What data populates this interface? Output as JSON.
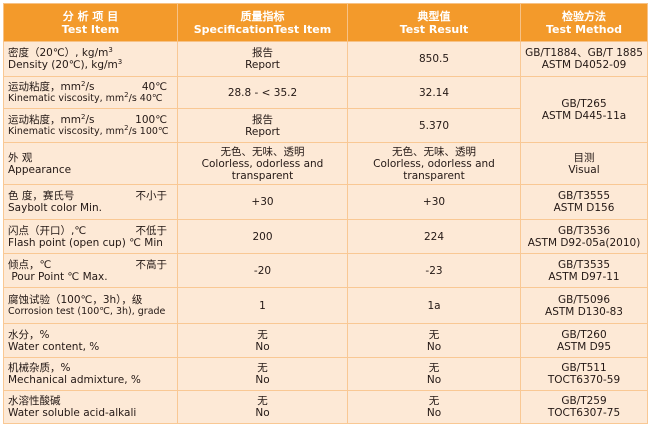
{
  "headers": [
    {
      "zh": "分 析 项 目",
      "en": "Test Item"
    },
    {
      "zh": "质量指标",
      "en": "SpecificationTest Item"
    },
    {
      "zh": "典型值",
      "en": "Test Result"
    },
    {
      "zh": "检验方法",
      "en": "Test Method"
    }
  ],
  "rows": [
    {
      "item_zh": "密度（20℃）, kg/m",
      "item_zh_sup": "3",
      "item_note": "",
      "item_en": "Density (20℃), kg/m",
      "item_en_sup": "3",
      "spec": [
        "报告",
        "Report"
      ],
      "result": [
        "850.5"
      ],
      "method": [
        "GB/T1884、GB/T 1885",
        "ASTM D4052-09"
      ]
    },
    {
      "item_zh": "运动粘度，mm",
      "item_zh_sup": "2",
      "item_zh_tail": "/s",
      "item_note": "40℃",
      "item_en": "Kinematic viscosity, mm",
      "item_en_sup": "2",
      "item_en_tail": "/s 40℃",
      "spec": [
        "28.8 - < 35.2"
      ],
      "result": [
        "32.14"
      ],
      "method": [
        "GB/T265",
        "ASTM D445-11a"
      ]
    },
    {
      "item_zh": "运动粘度，mm",
      "item_zh_sup": "2",
      "item_zh_tail": "/s",
      "item_note": "100℃",
      "item_en": "Kinematic viscosity, mm",
      "item_en_sup": "2",
      "item_en_tail": "/s 100℃",
      "spec": [
        "报告",
        "Report"
      ],
      "result": [
        "5.370"
      ]
    },
    {
      "item_zh": "外  观",
      "item_note": "",
      "item_en": "Appearance",
      "spec": [
        "无色、无味、透明",
        "Colorless, odorless and",
        "transparent"
      ],
      "result": [
        "无色、无味、透明",
        "Colorless, odorless and",
        "transparent"
      ],
      "method": [
        "目测",
        "Visual"
      ]
    },
    {
      "item_zh": "色  度，赛氏号",
      "item_note": "不小于",
      "item_en": "Saybolt color Min.",
      "spec": [
        "+30"
      ],
      "result": [
        "+30"
      ],
      "method": [
        "GB/T3555",
        "ASTM D156"
      ]
    },
    {
      "item_zh": "闪点（开口）,℃",
      "item_note": "不低于",
      "item_en": "Flash point (open cup) ℃ Min",
      "spec": [
        "200"
      ],
      "result": [
        "224"
      ],
      "method": [
        "GB/T3536",
        "ASTM D92-05a(2010)"
      ]
    },
    {
      "item_zh": "倾点，℃",
      "item_note": "不高于",
      "item_en": " Pour Point ℃ Max.",
      "spec": [
        "-20"
      ],
      "result": [
        "-23"
      ],
      "method": [
        "GB/T3535",
        "ASTM D97-11"
      ]
    },
    {
      "item_zh": "腐蚀试验（100℃，3h），级",
      "item_note": "",
      "item_en": "Corrosion test (100℃, 3h), grade",
      "spec": [
        "1"
      ],
      "result": [
        "1a"
      ],
      "method": [
        "GB/T5096",
        "ASTM D130-83"
      ]
    },
    {
      "item_zh": "水分，%",
      "item_note": "",
      "item_en": "Water content, %",
      "spec": [
        "无",
        "No"
      ],
      "result": [
        "无",
        "No"
      ],
      "method": [
        "GB/T260",
        "ASTM D95"
      ]
    },
    {
      "item_zh": "机械杂质，%",
      "item_note": "",
      "item_en": "Mechanical admixture, %",
      "spec": [
        "无",
        "No"
      ],
      "result": [
        "无",
        "No"
      ],
      "method": [
        "GB/T511",
        "TOCT6370-59"
      ]
    },
    {
      "item_zh": "水溶性酸碱",
      "item_note": "",
      "item_en": "Water soluble acid-alkali",
      "spec": [
        "无",
        "No"
      ],
      "result": [
        "无",
        "No"
      ],
      "method": [
        "GB/T259",
        "TOCT6307-75"
      ]
    }
  ],
  "colors": {
    "header_bg": "#f39a2b",
    "cell_bg": "#fde9d6",
    "border": "#f9c894"
  }
}
